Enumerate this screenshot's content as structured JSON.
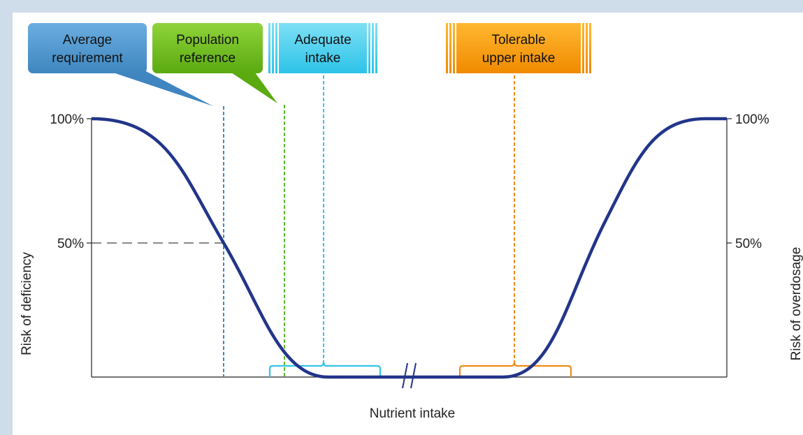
{
  "labels": {
    "average_requirement": [
      "Average",
      "requirement"
    ],
    "population_reference": [
      "Population",
      "reference"
    ],
    "adequate_intake": [
      "Adequate",
      "intake"
    ],
    "tolerable_upper_intake": [
      "Tolerable",
      "upper intake"
    ]
  },
  "axes": {
    "left_label": "Risk of deficiency",
    "right_label": "Risk of overdosage",
    "bottom_label": "Nutrient intake",
    "left_ticks": [
      "100%",
      "50%"
    ],
    "right_ticks": [
      "100%",
      "50%"
    ]
  }
}
